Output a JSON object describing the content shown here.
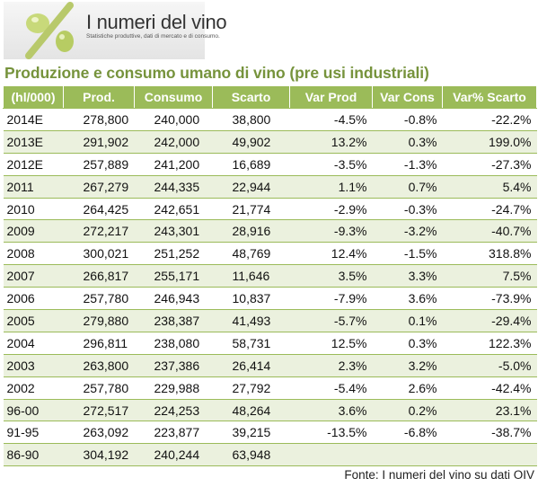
{
  "logo": {
    "symbol": "%",
    "title": "I numeri del vino",
    "subtitle": "Statistiche produttive, dati di mercato e di consumo."
  },
  "title": "Produzione e consumo umano di vino (pre usi industriali)",
  "table": {
    "headers": [
      "(hl/000)",
      "Prod.",
      "Consumo",
      "Scarto",
      "Var Prod",
      "Var Cons",
      "Var% Scarto"
    ],
    "rows": [
      [
        "2014E",
        "278,800",
        "240,000",
        "38,800",
        "-4.5%",
        "-0.8%",
        "-22.2%"
      ],
      [
        "2013E",
        "291,902",
        "242,000",
        "49,902",
        "13.2%",
        "0.3%",
        "199.0%"
      ],
      [
        "2012E",
        "257,889",
        "241,200",
        "16,689",
        "-3.5%",
        "-1.3%",
        "-27.3%"
      ],
      [
        "2011",
        "267,279",
        "244,335",
        "22,944",
        "1.1%",
        "0.7%",
        "5.4%"
      ],
      [
        "2010",
        "264,425",
        "242,651",
        "21,774",
        "-2.9%",
        "-0.3%",
        "-24.7%"
      ],
      [
        "2009",
        "272,217",
        "243,301",
        "28,916",
        "-9.3%",
        "-3.2%",
        "-40.7%"
      ],
      [
        "2008",
        "300,021",
        "251,252",
        "48,769",
        "12.4%",
        "-1.5%",
        "318.8%"
      ],
      [
        "2007",
        "266,817",
        "255,171",
        "11,646",
        "3.5%",
        "3.3%",
        "7.5%"
      ],
      [
        "2006",
        "257,780",
        "246,943",
        "10,837",
        "-7.9%",
        "3.6%",
        "-73.9%"
      ],
      [
        "2005",
        "279,880",
        "238,387",
        "41,493",
        "-5.7%",
        "0.1%",
        "-29.4%"
      ],
      [
        "2004",
        "296,811",
        "238,080",
        "58,731",
        "12.5%",
        "0.3%",
        "122.3%"
      ],
      [
        "2003",
        "263,800",
        "237,386",
        "26,414",
        "2.3%",
        "3.2%",
        "-5.0%"
      ],
      [
        "2002",
        "257,780",
        "229,988",
        "27,792",
        "-5.4%",
        "2.6%",
        "-42.4%"
      ],
      [
        "96-00",
        "272,517",
        "224,253",
        "48,264",
        "3.6%",
        "0.2%",
        "23.1%"
      ],
      [
        "91-95",
        "263,092",
        "223,877",
        "39,215",
        "-13.5%",
        "-6.8%",
        "-38.7%"
      ],
      [
        "86-90",
        "304,192",
        "240,244",
        "63,948",
        "",
        "",
        ""
      ]
    ]
  },
  "footer": "Fonte: I numeri del vino su dati OIV",
  "colors": {
    "accent": "#9bbb59",
    "title": "#76933c",
    "alt_row": "#ebf1de"
  }
}
